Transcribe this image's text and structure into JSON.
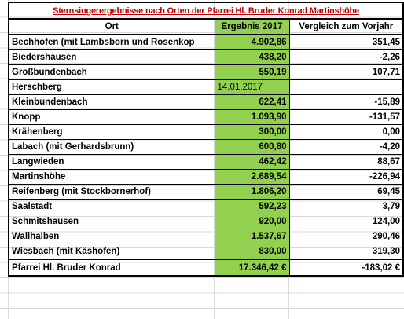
{
  "table": {
    "title": "Sternsingerergebnisse nach Orten der Pfarrei Hl. Bruder Konrad Martinshöhe",
    "header": [
      "Ort",
      "Ergebnis 2017",
      "Vergleich zum Vorjahr"
    ],
    "rows": [
      [
        "Bechhofen (mit Lambsborn und Rosenkop",
        "4.902,86",
        "351,45"
      ],
      [
        "Biedershausen",
        "438,20",
        "-2,26"
      ],
      [
        "Großbundenbach",
        "550,19",
        "107,71"
      ],
      [
        "Herschberg",
        "14.01.2017",
        ""
      ],
      [
        "Kleinbundenbach",
        "622,41",
        "-15,89"
      ],
      [
        "Knopp",
        "1.093,90",
        "-131,57"
      ],
      [
        "Krähenberg",
        "300,00",
        "0,00"
      ],
      [
        "Labach (mit Gerhardsbrunn)",
        "600,80",
        "-4,20"
      ],
      [
        "Langwieden",
        "462,42",
        "88,67"
      ],
      [
        "Martinshöhe",
        "2.689,54",
        "-226,94"
      ],
      [
        "Reifenberg (mit Stockbornerhof)",
        "1.806,20",
        "69,45"
      ],
      [
        "Saalstadt",
        "592,23",
        "3,79"
      ],
      [
        "Schmitshausen",
        "920,00",
        "124,00"
      ],
      [
        "Wallhalben",
        "1.537,67",
        "290,46"
      ],
      [
        "Wiesbach (mit Käshofen)",
        "830,00",
        "319,30"
      ]
    ],
    "total": [
      "Pfarrei Hl. Bruder Konrad",
      "17.346,42 €",
      "-183,02 €"
    ]
  }
}
